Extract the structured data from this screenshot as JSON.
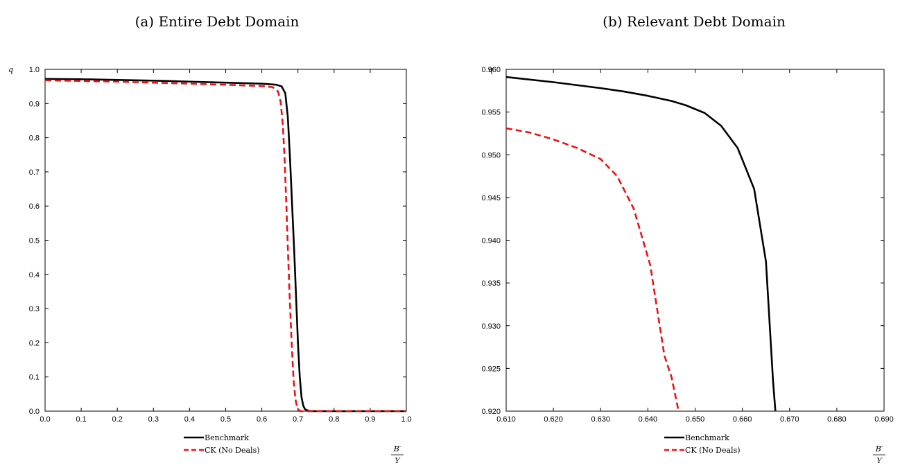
{
  "chart_data": [
    {
      "type": "line",
      "title": "(a) Entire Debt Domain",
      "ylabel": "q",
      "xlabel_num": "B′",
      "xlabel_den": "Y",
      "xlim": [
        0.0,
        1.0
      ],
      "ylim": [
        0.0,
        1.0
      ],
      "x_ticks": [
        "0.0",
        "0.1",
        "0.2",
        "0.3",
        "0.4",
        "0.5",
        "0.6",
        "0.7",
        "0.8",
        "0.9",
        "1.0"
      ],
      "x_tick_values": [
        0.0,
        0.1,
        0.2,
        0.3,
        0.4,
        0.5,
        0.6,
        0.7,
        0.8,
        0.9,
        1.0
      ],
      "y_ticks": [
        "0.0",
        "0.1",
        "0.2",
        "0.3",
        "0.4",
        "0.5",
        "0.6",
        "0.7",
        "0.8",
        "0.9",
        "1.0"
      ],
      "y_tick_values": [
        0.0,
        0.1,
        0.2,
        0.3,
        0.4,
        0.5,
        0.6,
        0.7,
        0.8,
        0.9,
        1.0
      ],
      "legend_position": "bottom-center",
      "series": [
        {
          "name": "Benchmark",
          "color": "#000000",
          "dash": "solid",
          "x": [
            0.0,
            0.1,
            0.2,
            0.3,
            0.4,
            0.5,
            0.6,
            0.64,
            0.655,
            0.665,
            0.672,
            0.678,
            0.684,
            0.69,
            0.695,
            0.7,
            0.705,
            0.71,
            0.715,
            0.72,
            0.73,
            0.74,
            0.8,
            0.9,
            1.0
          ],
          "y": [
            0.972,
            0.971,
            0.969,
            0.967,
            0.964,
            0.961,
            0.958,
            0.955,
            0.95,
            0.93,
            0.86,
            0.74,
            0.6,
            0.46,
            0.33,
            0.2,
            0.1,
            0.04,
            0.015,
            0.005,
            0.001,
            0.0,
            0.0,
            0.0,
            0.0
          ]
        },
        {
          "name": "CK (No Deals)",
          "color": "#ee1111",
          "dash": "dashed",
          "x": [
            0.0,
            0.1,
            0.2,
            0.3,
            0.4,
            0.5,
            0.6,
            0.63,
            0.645,
            0.652,
            0.658,
            0.663,
            0.668,
            0.673,
            0.678,
            0.683,
            0.688,
            0.693,
            0.698,
            0.705,
            0.72,
            0.8,
            0.9,
            1.0
          ],
          "y": [
            0.968,
            0.966,
            0.964,
            0.961,
            0.958,
            0.955,
            0.951,
            0.948,
            0.935,
            0.905,
            0.84,
            0.74,
            0.6,
            0.45,
            0.31,
            0.19,
            0.09,
            0.035,
            0.01,
            0.0,
            0.0,
            0.0,
            0.0,
            0.0
          ]
        }
      ]
    },
    {
      "type": "line",
      "title": "(b) Relevant Debt Domain",
      "ylabel": "q",
      "xlabel_num": "B′",
      "xlabel_den": "Y",
      "xlim": [
        0.61,
        0.69
      ],
      "ylim": [
        0.92,
        0.96
      ],
      "x_ticks": [
        "0.610",
        "0.620",
        "0.630",
        "0.640",
        "0.650",
        "0.660",
        "0.670",
        "0.680",
        "0.690"
      ],
      "x_tick_values": [
        0.61,
        0.62,
        0.63,
        0.64,
        0.65,
        0.66,
        0.67,
        0.68,
        0.69
      ],
      "y_ticks": [
        "0.920",
        "0.925",
        "0.930",
        "0.935",
        "0.940",
        "0.945",
        "0.950",
        "0.955",
        "0.960"
      ],
      "y_tick_values": [
        0.92,
        0.925,
        0.93,
        0.935,
        0.94,
        0.945,
        0.95,
        0.955,
        0.96
      ],
      "legend_position": "bottom-center",
      "series": [
        {
          "name": "Benchmark",
          "color": "#000000",
          "dash": "solid",
          "x": [
            0.61,
            0.62,
            0.63,
            0.635,
            0.64,
            0.645,
            0.648,
            0.652,
            0.6555,
            0.659,
            0.6625,
            0.665,
            0.6665,
            0.667
          ],
          "y": [
            0.9591,
            0.9585,
            0.9578,
            0.9574,
            0.9569,
            0.9563,
            0.9558,
            0.9549,
            0.9534,
            0.9508,
            0.946,
            0.9375,
            0.9235,
            0.92
          ]
        },
        {
          "name": "CK (No Deals)",
          "color": "#ee1111",
          "dash": "dashed",
          "x": [
            0.61,
            0.615,
            0.62,
            0.625,
            0.63,
            0.6335,
            0.637,
            0.6405,
            0.6435,
            0.645,
            0.6465
          ],
          "y": [
            0.9531,
            0.9526,
            0.9518,
            0.9508,
            0.9495,
            0.9475,
            0.9437,
            0.9371,
            0.9265,
            0.924,
            0.92
          ]
        }
      ]
    }
  ]
}
